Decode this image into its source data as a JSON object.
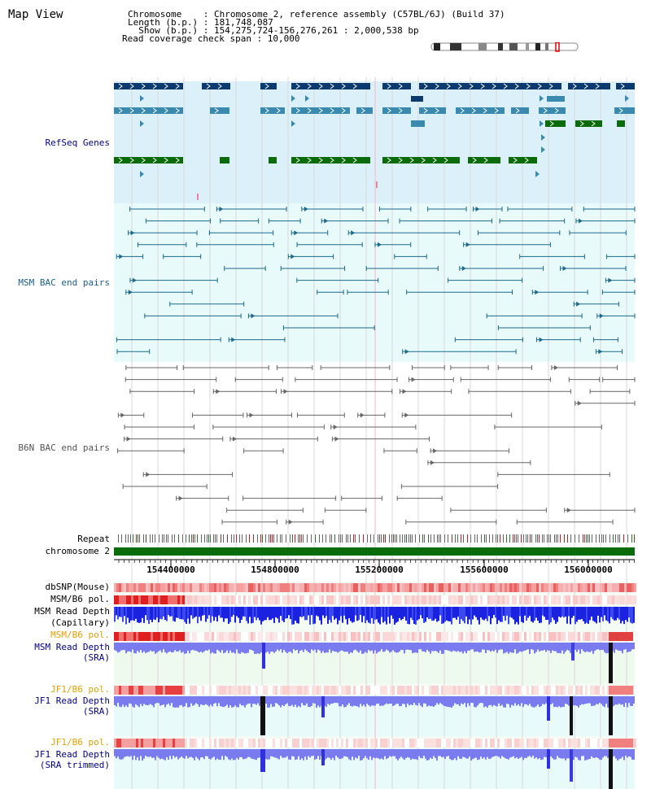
{
  "title": "Map View",
  "info": {
    "chromosome": "Chromosome    : Chromosome 2, reference assembly (C57BL/6J) (Build 37)",
    "length": "Length (b.p.) : 181,748,087",
    "show": "  Show (b.p.) : 154,275,724-156,276,261 : 2,000,538 bp",
    "coverage": "Read coverage check span : 10,000"
  },
  "tracks": {
    "refseq": "RefSeq Genes",
    "msm_bac": "MSM BAC end pairs",
    "b6n_bac": "B6N BAC end pairs",
    "repeat": "Repeat",
    "chromosome": "chromosome 2",
    "dbsnp": "dbSNP(Mouse)",
    "msm_b6_pol": "MSM/B6 pol.",
    "msm_read_depth_cap_1": "MSM Read Depth",
    "msm_read_depth_cap_2": "(Capillary)",
    "msm_b6_pol2": "MSM/B6 pol.",
    "msm_read_depth_sra_1": "MSM Read Depth",
    "msm_read_depth_sra_2": "(SRA)",
    "jf1_b6_pol": "JF1/B6 pol.",
    "jf1_read_depth_1": "JF1 Read Depth",
    "jf1_read_depth_2": "(SRA)",
    "jf1_b6_pol2": "JF1/B6 pol.",
    "jf1_trim_1": "JF1 Read Depth",
    "jf1_trim_2": "(SRA trimmed)"
  },
  "axis_ticks": [
    "154400000",
    "154800000",
    "155200000",
    "155600000",
    "156000000"
  ],
  "colors": {
    "refseq_dark": "#0d3a6e",
    "refseq_mid": "#3a8ab0",
    "refseq_green": "#0a6b0a",
    "refseq_bg": "#dcf0fa",
    "msm_line": "#1b6a8a",
    "msm_bg": "#e8fafa",
    "b6n_line": "#666666",
    "chrom_green": "#0a6b0a",
    "depth_blue": "#1a2ae0",
    "depth_light": "#7b7bf0",
    "label_blue": "#00008b",
    "label_orange": "#e8a000",
    "label_msm": "#1a5f8a"
  }
}
